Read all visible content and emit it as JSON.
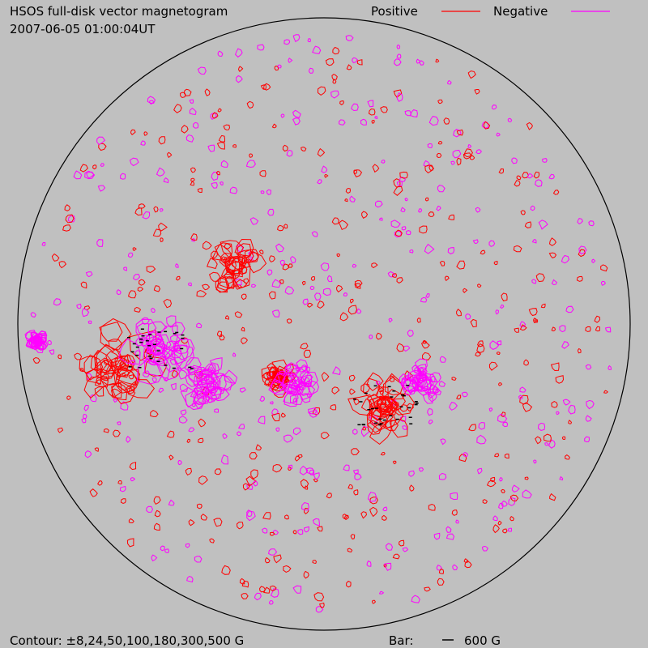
{
  "header": {
    "title": "HSOS full-disk vector magnetogram",
    "timestamp": "2007-06-05 01:00:04UT"
  },
  "legend": [
    {
      "label": "Positive",
      "color": "#ff0000"
    },
    {
      "label": "Negative",
      "color": "#ff00ff"
    }
  ],
  "footer": {
    "contour": "Contour: ±8,24,50,100,180,300,500 G",
    "bar_label": "Bar:",
    "bar_value": "600 G"
  }
}
